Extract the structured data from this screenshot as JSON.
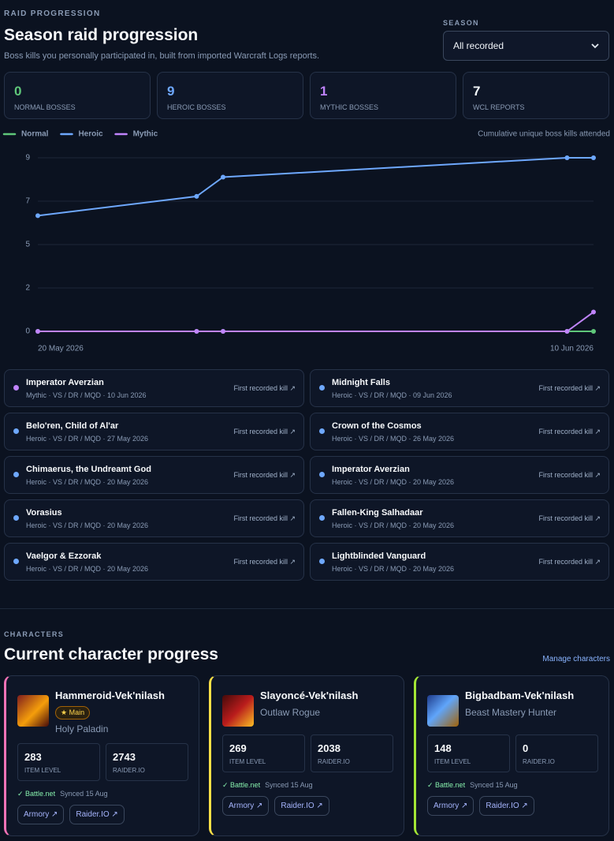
{
  "raid": {
    "eyebrow": "RAID PROGRESSION",
    "title": "Season raid progression",
    "subtitle": "Boss kills you personally participated in, built from imported Warcraft Logs reports.",
    "season": {
      "label": "SEASON",
      "value": "All recorded"
    },
    "stats": [
      {
        "value": 0,
        "label": "NORMAL BOSSES",
        "color": "#5fc77a"
      },
      {
        "value": 9,
        "label": "HEROIC BOSSES",
        "color": "#6ea8fe"
      },
      {
        "value": 1,
        "label": "MYTHIC BOSSES",
        "color": "#c084fc"
      },
      {
        "value": 7,
        "label": "WCL REPORTS",
        "color": "#f1f5f9"
      }
    ],
    "chart_data": {
      "type": "line",
      "subtitle": "Cumulative unique boss kills attended",
      "x": [
        "2026-05-20",
        "2026-05-26",
        "2026-05-27",
        "2026-06-09",
        "2026-06-10"
      ],
      "xlim": [
        "2026-05-20",
        "2026-06-10"
      ],
      "xticks": [
        {
          "value": "2026-05-20",
          "label": "20 May 2026"
        },
        {
          "value": "2026-06-10",
          "label": "10 Jun 2026"
        }
      ],
      "ylim": [
        0,
        9
      ],
      "yticks": [
        0,
        {
          "value": 2.25,
          "label": "2"
        },
        {
          "value": 4.5,
          "label": "5"
        },
        {
          "value": 6.75,
          "label": "7"
        },
        9
      ],
      "grid": true,
      "legend": "top-left",
      "series": [
        {
          "name": "Normal",
          "color": "#5fc77a",
          "values": [
            0,
            0,
            0,
            0,
            0
          ]
        },
        {
          "name": "Heroic",
          "color": "#6ea8fe",
          "values": [
            6,
            7,
            8,
            9,
            9
          ]
        },
        {
          "name": "Mythic",
          "color": "#c084fc",
          "values": [
            0,
            0,
            0,
            0,
            1
          ]
        }
      ]
    },
    "kills": [
      {
        "boss": "Imperator Averzian",
        "details": "Mythic · VS / DR / MQD · 10 Jun 2026",
        "link": "First recorded kill ↗",
        "color": "#c084fc"
      },
      {
        "boss": "Midnight Falls",
        "details": "Heroic · VS / DR / MQD · 09 Jun 2026",
        "link": "First recorded kill ↗",
        "color": "#6ea8fe"
      },
      {
        "boss": "Belo'ren, Child of Al'ar",
        "details": "Heroic · VS / DR / MQD · 27 May 2026",
        "link": "First recorded kill ↗",
        "color": "#6ea8fe"
      },
      {
        "boss": "Crown of the Cosmos",
        "details": "Heroic · VS / DR / MQD · 26 May 2026",
        "link": "First recorded kill ↗",
        "color": "#6ea8fe"
      },
      {
        "boss": "Chimaerus, the Undreamt God",
        "details": "Heroic · VS / DR / MQD · 20 May 2026",
        "link": "First recorded kill ↗",
        "color": "#6ea8fe"
      },
      {
        "boss": "Imperator Averzian",
        "details": "Heroic · VS / DR / MQD · 20 May 2026",
        "link": "First recorded kill ↗",
        "color": "#6ea8fe"
      },
      {
        "boss": "Vorasius",
        "details": "Heroic · VS / DR / MQD · 20 May 2026",
        "link": "First recorded kill ↗",
        "color": "#6ea8fe"
      },
      {
        "boss": "Fallen-King Salhadaar",
        "details": "Heroic · VS / DR / MQD · 20 May 2026",
        "link": "First recorded kill ↗",
        "color": "#6ea8fe"
      },
      {
        "boss": "Vaelgor & Ezzorak",
        "details": "Heroic · VS / DR / MQD · 20 May 2026",
        "link": "First recorded kill ↗",
        "color": "#6ea8fe"
      },
      {
        "boss": "Lightblinded Vanguard",
        "details": "Heroic · VS / DR / MQD · 20 May 2026",
        "link": "First recorded kill ↗",
        "color": "#6ea8fe"
      }
    ]
  },
  "characters": {
    "eyebrow": "CHARACTERS",
    "title": "Current character progress",
    "manage": "Manage characters",
    "cards": [
      {
        "name": "Hammeroid-Vek'nilash",
        "badge": "★ Main",
        "spec": "Holy Paladin",
        "accent": "#f472b6",
        "stats": [
          {
            "value": 283,
            "label": "ITEM LEVEL"
          },
          {
            "value": 2743,
            "label": "RAIDER.IO"
          }
        ],
        "status": "✓ Battle.net",
        "synced": "Synced 15 Aug",
        "links": [
          "Armory ↗",
          "Raider.IO ↗"
        ]
      },
      {
        "name": "Slayoncé-Vek'nilash",
        "spec": "Outlaw Rogue",
        "accent": "#fde047",
        "stats": [
          {
            "value": 269,
            "label": "ITEM LEVEL"
          },
          {
            "value": 2038,
            "label": "RAIDER.IO"
          }
        ],
        "status": "✓ Battle.net",
        "synced": "Synced 15 Aug",
        "links": [
          "Armory ↗",
          "Raider.IO ↗"
        ]
      },
      {
        "name": "Bigbadbam-Vek'nilash",
        "spec": "Beast Mastery Hunter",
        "accent": "#a3e635",
        "stats": [
          {
            "value": 148,
            "label": "ITEM LEVEL"
          },
          {
            "value": 0,
            "label": "RAIDER.IO"
          }
        ],
        "status": "✓ Battle.net",
        "synced": "Synced 15 Aug",
        "links": [
          "Armory ↗",
          "Raider.IO ↗"
        ]
      }
    ]
  }
}
